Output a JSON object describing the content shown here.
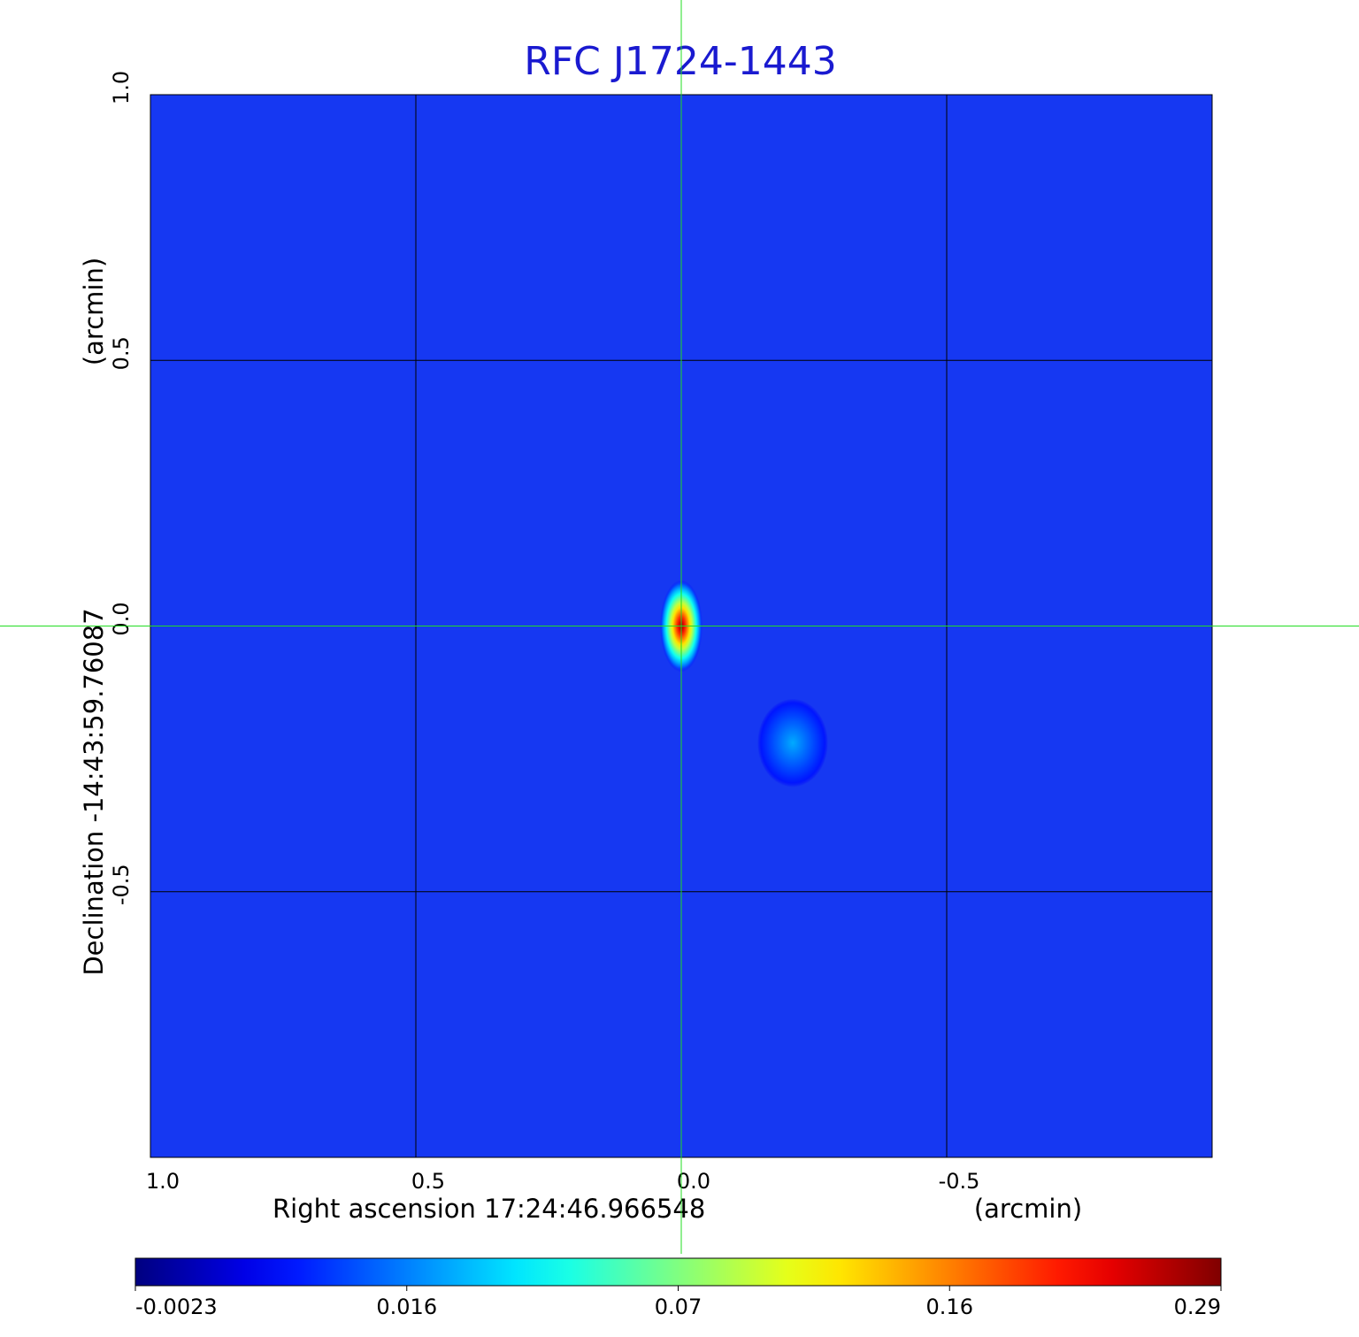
{
  "chart_data": {
    "type": "heatmap",
    "title": "RFC J1724-1443",
    "x_label": "Right ascension  17:24:46.966548",
    "x_unit": "(arcmin)",
    "y_label": "Declination  -14:43:59.76087",
    "y_unit": "(arcmin)",
    "xlim": [
      1.0,
      -1.0
    ],
    "ylim": [
      -1.0,
      1.0
    ],
    "xticks": [
      {
        "value": 1.0,
        "label": "1.0"
      },
      {
        "value": 0.5,
        "label": "0.5"
      },
      {
        "value": 0.0,
        "label": "0.0"
      },
      {
        "value": -0.5,
        "label": "-0.5"
      }
    ],
    "yticks": [
      {
        "value": 1.0,
        "label": "1.0"
      },
      {
        "value": 0.5,
        "label": "0.5"
      },
      {
        "value": 0.0,
        "label": "0.0"
      },
      {
        "value": -0.5,
        "label": "-0.5"
      }
    ],
    "grid": true,
    "background_color": "#1638f2",
    "crosshair_color": "#22dd22",
    "sources": [
      {
        "x": 0.0,
        "y": 0.0,
        "peak": 0.29
      },
      {
        "x": -0.21,
        "y": -0.22,
        "peak": 0.025
      }
    ],
    "colorbar": {
      "ticks": [
        -0.0023,
        0.016,
        0.07,
        0.16,
        0.29
      ]
    }
  }
}
